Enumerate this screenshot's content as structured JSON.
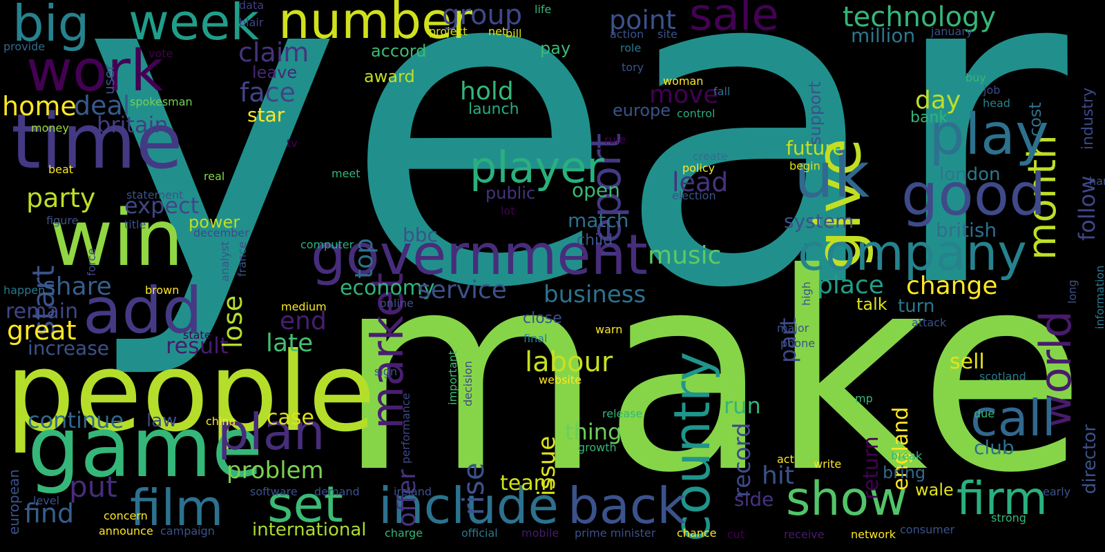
{
  "words": [
    {
      "text": "year",
      "c": "#21908c"
    },
    {
      "text": "make",
      "c": "#86d549"
    },
    {
      "text": "people",
      "c": "#b5de2b"
    },
    {
      "text": "game",
      "c": "#35b779"
    },
    {
      "text": "time",
      "c": "#443983"
    },
    {
      "text": "win",
      "c": "#90d743"
    },
    {
      "text": "add",
      "c": "#443983"
    },
    {
      "text": "work",
      "c": "#440154"
    },
    {
      "text": "big",
      "c": "#26828e"
    },
    {
      "text": "week",
      "c": "#1f9e89"
    },
    {
      "text": "number",
      "c": "#d0e11c"
    },
    {
      "text": "sale",
      "c": "#440154"
    },
    {
      "text": "group",
      "c": "#3e4989"
    },
    {
      "text": "point",
      "c": "#3b528b"
    },
    {
      "text": "technology",
      "c": "#35b779"
    },
    {
      "text": "million",
      "c": "#2a788e"
    },
    {
      "text": "give",
      "c": "#c2df23"
    },
    {
      "text": "month",
      "c": "#bddf26"
    },
    {
      "text": "play",
      "c": "#2c728e"
    },
    {
      "text": "good",
      "c": "#3e4a89"
    },
    {
      "text": "uk",
      "c": "#31688e"
    },
    {
      "text": "report",
      "c": "#443983"
    },
    {
      "text": "market",
      "c": "#481f70"
    },
    {
      "text": "player",
      "c": "#2ab07f"
    },
    {
      "text": "government",
      "c": "#472d7b"
    },
    {
      "text": "company",
      "c": "#25838e"
    },
    {
      "text": "country",
      "c": "#1f958b"
    },
    {
      "text": "world",
      "c": "#481b6d"
    },
    {
      "text": "call",
      "c": "#31688e"
    },
    {
      "text": "film",
      "c": "#2c728e"
    },
    {
      "text": "set",
      "c": "#3bbb75"
    },
    {
      "text": "include",
      "c": "#2c728e"
    },
    {
      "text": "back",
      "c": "#3b528b"
    },
    {
      "text": "show",
      "c": "#52c569"
    },
    {
      "text": "firm",
      "c": "#2ab07f"
    },
    {
      "text": "plan",
      "c": "#472d7b"
    },
    {
      "text": "party",
      "c": "#bddf26"
    },
    {
      "text": "expect",
      "c": "#3f4788"
    },
    {
      "text": "claim",
      "c": "#46337f"
    },
    {
      "text": "face",
      "c": "#414487"
    },
    {
      "text": "deal",
      "c": "#38598c"
    },
    {
      "text": "britain",
      "c": "#433e85"
    },
    {
      "text": "home",
      "c": "#fde725"
    },
    {
      "text": "start",
      "c": "#3b528b"
    },
    {
      "text": "share",
      "c": "#355f8d"
    },
    {
      "text": "remain",
      "c": "#404688"
    },
    {
      "text": "great",
      "c": "#fde725"
    },
    {
      "text": "increase",
      "c": "#3b528b"
    },
    {
      "text": "result",
      "c": "#481b6d"
    },
    {
      "text": "late",
      "c": "#44bf70"
    },
    {
      "text": "end",
      "c": "#481f70"
    },
    {
      "text": "lose",
      "c": "#b5de2b"
    },
    {
      "text": "top",
      "c": "#2e6f8e"
    },
    {
      "text": "bbc",
      "c": "#3b528b"
    },
    {
      "text": "continue",
      "c": "#31688e"
    },
    {
      "text": "law",
      "c": "#3e4a89"
    },
    {
      "text": "find",
      "c": "#355f8d"
    },
    {
      "text": "put",
      "c": "#472d7b"
    },
    {
      "text": "problem",
      "c": "#7ad151"
    },
    {
      "text": "international",
      "c": "#addc30"
    },
    {
      "text": "economy",
      "c": "#2fb47c"
    },
    {
      "text": "service",
      "c": "#3b528b"
    },
    {
      "text": "business",
      "c": "#2c728e"
    },
    {
      "text": "music",
      "c": "#5ec962"
    },
    {
      "text": "labour",
      "c": "#c8e020"
    },
    {
      "text": "issue",
      "c": "#dde318"
    },
    {
      "text": "offer",
      "c": "#46337f"
    },
    {
      "text": "rise",
      "c": "#3b528b"
    },
    {
      "text": "record",
      "c": "#3e4989"
    },
    {
      "text": "case",
      "c": "#dde318"
    },
    {
      "text": "thing",
      "c": "#6ece58"
    },
    {
      "text": "team",
      "c": "#d2e21b"
    },
    {
      "text": "hold",
      "c": "#35b779"
    },
    {
      "text": "move",
      "c": "#440154"
    },
    {
      "text": "lead",
      "c": "#46337f"
    },
    {
      "text": "open",
      "c": "#3bbb75"
    },
    {
      "text": "match",
      "c": "#2d708e"
    },
    {
      "text": "child",
      "c": "#3b528b"
    },
    {
      "text": "europe",
      "c": "#3b528b"
    },
    {
      "text": "launch",
      "c": "#26ad81"
    },
    {
      "text": "star",
      "c": "#fde725"
    },
    {
      "text": "day",
      "c": "#bddf26"
    },
    {
      "text": "future",
      "c": "#c2df23"
    },
    {
      "text": "system",
      "c": "#3b528b"
    },
    {
      "text": "part",
      "c": "#3e4989"
    },
    {
      "text": "place",
      "c": "#1f9f88"
    },
    {
      "text": "change",
      "c": "#fde725"
    },
    {
      "text": "talk",
      "c": "#dde318"
    },
    {
      "text": "turn",
      "c": "#2a788e"
    },
    {
      "text": "run",
      "c": "#31b57b"
    },
    {
      "text": "hit",
      "c": "#3b528b"
    },
    {
      "text": "side",
      "c": "#46337f"
    },
    {
      "text": "england",
      "c": "#fde725"
    },
    {
      "text": "return",
      "c": "#440154"
    },
    {
      "text": "sell",
      "c": "#e5e419"
    },
    {
      "text": "club",
      "c": "#2d708e"
    },
    {
      "text": "bring",
      "c": "#31688e"
    },
    {
      "text": "wale",
      "c": "#dde318"
    },
    {
      "text": "london",
      "c": "#2a788e"
    },
    {
      "text": "british",
      "c": "#2e6e8e"
    },
    {
      "text": "follow",
      "c": "#3f4788"
    },
    {
      "text": "cost",
      "c": "#2c728e"
    },
    {
      "text": "industry",
      "c": "#3e4989"
    },
    {
      "text": "support",
      "c": "#3b528b"
    },
    {
      "text": "bank",
      "c": "#31b57b"
    },
    {
      "text": "director",
      "c": "#3b528b"
    },
    {
      "text": "pay",
      "c": "#3bbb75"
    },
    {
      "text": "accord",
      "c": "#3bbb75"
    },
    {
      "text": "award",
      "c": "#c2df23"
    },
    {
      "text": "leave",
      "c": "#482677"
    },
    {
      "text": "user",
      "c": "#3b528b"
    },
    {
      "text": "data",
      "c": "#433e85"
    },
    {
      "text": "blair",
      "c": "#404688"
    },
    {
      "text": "life",
      "c": "#35b779"
    },
    {
      "text": "project",
      "c": "#dde318"
    },
    {
      "text": "net",
      "c": "#dde318"
    },
    {
      "text": "bill",
      "c": "#dde318"
    },
    {
      "text": "provide",
      "c": "#31688e"
    },
    {
      "text": "vote",
      "c": "#440154"
    },
    {
      "text": "action",
      "c": "#3b528b"
    },
    {
      "text": "site",
      "c": "#3b528b"
    },
    {
      "text": "role",
      "c": "#2a788e"
    },
    {
      "text": "tory",
      "c": "#3b528b"
    },
    {
      "text": "january",
      "c": "#3b528b"
    },
    {
      "text": "spokesman",
      "c": "#73d056"
    },
    {
      "text": "money",
      "c": "#9fda3a"
    },
    {
      "text": "woman",
      "c": "#fde725"
    },
    {
      "text": "fall",
      "c": "#2e6e8e"
    },
    {
      "text": "control",
      "c": "#26ad81"
    },
    {
      "text": "buy",
      "c": "#35b779"
    },
    {
      "text": "job",
      "c": "#3e4989"
    },
    {
      "text": "head",
      "c": "#26828e"
    },
    {
      "text": "tv",
      "c": "#440154"
    },
    {
      "text": "rule",
      "c": "#440154"
    },
    {
      "text": "create",
      "c": "#2d708e"
    },
    {
      "text": "policy",
      "c": "#fde725"
    },
    {
      "text": "begin",
      "c": "#dde318"
    },
    {
      "text": "election",
      "c": "#3b528b"
    },
    {
      "text": "public",
      "c": "#46337f"
    },
    {
      "text": "lot",
      "c": "#440154"
    },
    {
      "text": "beat",
      "c": "#fde725"
    },
    {
      "text": "real",
      "c": "#86d549"
    },
    {
      "text": "statement",
      "c": "#3b528b"
    },
    {
      "text": "figure",
      "c": "#3b528b"
    },
    {
      "text": "title",
      "c": "#3b528b"
    },
    {
      "text": "power",
      "c": "#bddf26"
    },
    {
      "text": "december",
      "c": "#3e4989"
    },
    {
      "text": "meet",
      "c": "#35b779"
    },
    {
      "text": "computer",
      "c": "#2ab07f"
    },
    {
      "text": "analyst",
      "c": "#3b528b"
    },
    {
      "text": "france",
      "c": "#3b528b"
    },
    {
      "text": "force",
      "c": "#3e4989"
    },
    {
      "text": "happen",
      "c": "#2a788e"
    },
    {
      "text": "brown",
      "c": "#fde725"
    },
    {
      "text": "state",
      "c": "#440154"
    },
    {
      "text": "medium",
      "c": "#fde725"
    },
    {
      "text": "online",
      "c": "#3b528b"
    },
    {
      "text": "close",
      "c": "#3b528b"
    },
    {
      "text": "final",
      "c": "#26828e"
    },
    {
      "text": "warn",
      "c": "#fde725"
    },
    {
      "text": "website",
      "c": "#fde725"
    },
    {
      "text": "sign",
      "c": "#3b528b"
    },
    {
      "text": "important",
      "c": "#3bbb75"
    },
    {
      "text": "decision",
      "c": "#3e4989"
    },
    {
      "text": "performance",
      "c": "#3e4989"
    },
    {
      "text": "china",
      "c": "#fde725"
    },
    {
      "text": "release",
      "c": "#35b779"
    },
    {
      "text": "growth",
      "c": "#35b779"
    },
    {
      "text": "ireland",
      "c": "#3b528b"
    },
    {
      "text": "software",
      "c": "#3b528b"
    },
    {
      "text": "demand",
      "c": "#3b528b"
    },
    {
      "text": "concern",
      "c": "#fde725"
    },
    {
      "text": "announce",
      "c": "#fde725"
    },
    {
      "text": "campaign",
      "c": "#3b528b"
    },
    {
      "text": "charge",
      "c": "#35b779"
    },
    {
      "text": "official",
      "c": "#2a788e"
    },
    {
      "text": "mobile",
      "c": "#481b6d"
    },
    {
      "text": "prime minister",
      "c": "#3b528b"
    },
    {
      "text": "chance",
      "c": "#fde725"
    },
    {
      "text": "cut",
      "c": "#440154"
    },
    {
      "text": "receive",
      "c": "#481b6d"
    },
    {
      "text": "network",
      "c": "#fde725"
    },
    {
      "text": "consumer",
      "c": "#3b528b"
    },
    {
      "text": "european",
      "c": "#3b528b"
    },
    {
      "text": "level",
      "c": "#3b528b"
    },
    {
      "text": "high",
      "c": "#3b528b"
    },
    {
      "text": "major",
      "c": "#3b528b"
    },
    {
      "text": "phone",
      "c": "#3b528b"
    },
    {
      "text": "attack",
      "c": "#3b528b"
    },
    {
      "text": "mp",
      "c": "#35b779"
    },
    {
      "text": "due",
      "c": "#35b779"
    },
    {
      "text": "act",
      "c": "#fde725"
    },
    {
      "text": "write",
      "c": "#fde725"
    },
    {
      "text": "break",
      "c": "#35b779"
    },
    {
      "text": "early",
      "c": "#3b528b"
    },
    {
      "text": "strong",
      "c": "#35b779"
    },
    {
      "text": "scotland",
      "c": "#2a788e"
    },
    {
      "text": "information",
      "c": "#2a788e"
    },
    {
      "text": "long",
      "c": "#3b528b"
    },
    {
      "text": "hand",
      "c": "#3b528b"
    }
  ]
}
